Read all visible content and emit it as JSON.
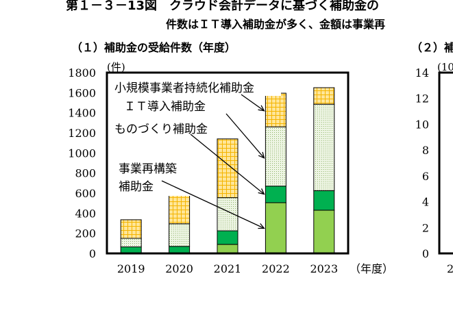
{
  "header": {
    "main_title": "第１－３－13図　クラウド会計データに基づく補助金の",
    "subtitle": "件数はＩＴ導入補助金が多く、金額は事業再"
  },
  "colors": {
    "jigyo": "#92d050",
    "monozukuri": "#00b050",
    "it": "#e2efda",
    "it_dots": "#9bbb59",
    "shokibo": "#ffe699",
    "shokibo_grid": "#f4b400",
    "frame": "#000000"
  },
  "chart_data": [
    {
      "panel_title": "（１）補助金の受給件数（年度）",
      "type": "bar",
      "stacked": true,
      "categories": [
        "2019",
        "2020",
        "2021",
        "2022",
        "2023"
      ],
      "xunit": "（年度）",
      "yunit": "(件)",
      "ylim": [
        0,
        1800
      ],
      "yticks": [
        "0",
        "200",
        "400",
        "600",
        "800",
        "1000",
        "1200",
        "1400",
        "1600",
        "1800"
      ],
      "series": [
        {
          "name": "事業再構築\n補助金",
          "key": "jigyo",
          "values": [
            0,
            0,
            90,
            505,
            430
          ]
        },
        {
          "name": "ものづくり補助金",
          "key": "monozukuri",
          "values": [
            65,
            70,
            135,
            165,
            195
          ]
        },
        {
          "name": "ＩＴ導入補助金",
          "key": "it",
          "values": [
            85,
            225,
            330,
            590,
            860
          ]
        },
        {
          "name": "小規模事業者持続化補助金",
          "key": "shokibo",
          "values": [
            185,
            315,
            585,
            335,
            165
          ]
        }
      ],
      "legend_style": "annotated-arrows"
    },
    {
      "panel_title": "（２）補",
      "type": "bar",
      "stacked": true,
      "yunit": "(10",
      "yticks": [
        "0",
        "2",
        "4",
        "6",
        "8",
        "10",
        "12",
        "14"
      ],
      "first_category_fragment": "2",
      "partially_visible": true
    }
  ]
}
